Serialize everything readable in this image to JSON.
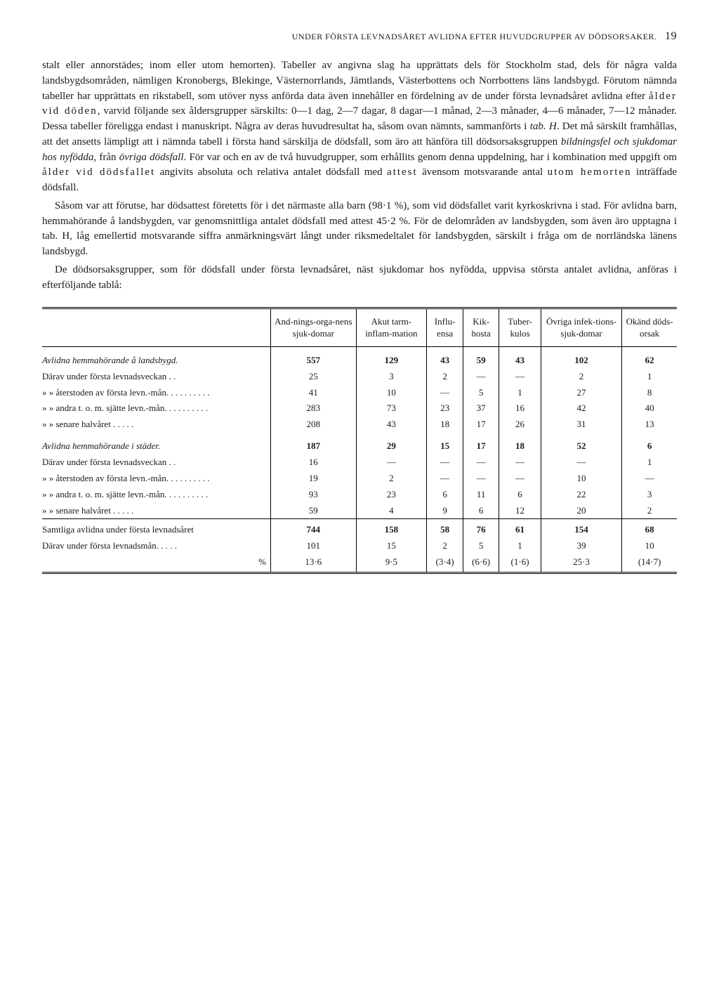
{
  "header": {
    "running_title": "UNDER FÖRSTA LEVNADSÅRET AVLIDNA EFTER HUVUDGRUPPER AV DÖDSORSAKER.",
    "page_number": "19"
  },
  "paragraphs": {
    "p1": "stalt eller annorstädes; inom eller utom hemorten). Tabeller av angivna slag ha upprättats dels för Stockholm stad, dels för några valda landsbygdsområden, nämligen Kronobergs, Blekinge, Västernorrlands, Jämtlands, Västerbottens och Norrbottens läns landsbygd. Förutom nämnda tabeller har upprättats en rikstabell, som utöver nyss anförda data även innehåller en fördelning av de under första levnadsåret avlidna efter ",
    "p1_spaced1": "ålder vid döden",
    "p1b": ", varvid följande sex åldersgrupper särskilts: 0—1 dag, 2—7 dagar, 8 dagar—1 månad, 2—3 månader, 4—6 månader, 7—12 månader. Dessa tabeller föreligga endast i manuskript. Några av deras huvudresultat ha, såsom ovan nämnts, sammanförts i ",
    "p1_em1": "tab. H",
    "p1c": ". Det må särskilt framhållas, att det ansetts lämpligt att i nämnda tabell i första hand särskilja de dödsfall, som äro att hänföra till dödsorsaksgruppen ",
    "p1_em2": "bildningsfel och sjukdomar hos nyfödda",
    "p1d": ", från ",
    "p1_em3": "övriga dödsfall",
    "p1e": ". För var och en av de två huvudgrupper, som erhållits genom denna uppdelning, har i kombination med uppgift om ",
    "p1_spaced2": "ålder vid dödsfallet",
    "p1f": " angivits absoluta och relativa antalet dödsfall med ",
    "p1_spaced3": "attest",
    "p1g": " ävensom motsvarande antal ",
    "p1_spaced4": "utom hemorten",
    "p1h": " inträffade dödsfall.",
    "p2a": "Såsom var att förutse, har dödsattest företetts för i det närmaste alla barn (98·1 %), som vid dödsfallet varit kyrkoskrivna i stad. För avlidna barn, hemmahörande å landsbygden, var genomsnittliga antalet dödsfall med attest 45·2 %. För de delområden av landsbygden, som även äro upptagna i tab. H, låg emellertid motsvarande siffra anmärkningsvärt långt under riksmedeltalet för landsbygden, särskilt i fråga om de norrländska länens landsbygd.",
    "p3a": "De dödsorsaksgrupper, som för dödsfall under första levnadsåret, näst sjukdomar hos nyfödda, uppvisa största antalet avlidna, anföras i efterföljande tablå:"
  },
  "table": {
    "columns": [
      "",
      "And-nings-orga-nens sjuk-domar",
      "Akut tarm-inflam-mation",
      "Influ-ensa",
      "Kik-hosta",
      "Tuber-kulos",
      "Övriga infek-tions-sjuk-domar",
      "Okänd döds-orsak"
    ],
    "sections": [
      {
        "title": "Avlidna hemmahörande å landsbygd.",
        "totals": [
          "557",
          "129",
          "43",
          "59",
          "43",
          "102",
          "62"
        ],
        "rows": [
          {
            "label": "Därav under första levnadsveckan . .",
            "vals": [
              "25",
              "3",
              "2",
              "—",
              "—",
              "2",
              "1"
            ]
          },
          {
            "label": "»     »  återstoden av första levn.-mån. . . . . . . . . .",
            "vals": [
              "41",
              "10",
              "—",
              "5",
              "1",
              "27",
              "8"
            ]
          },
          {
            "label": "»     »  andra t. o. m. sjätte levn.-mån. . . . . . . . . .",
            "vals": [
              "283",
              "73",
              "23",
              "37",
              "16",
              "42",
              "40"
            ]
          },
          {
            "label": "»     »  senare halvåret . . . . .",
            "vals": [
              "208",
              "43",
              "18",
              "17",
              "26",
              "31",
              "13"
            ]
          }
        ]
      },
      {
        "title": "Avlidna hemmahörande i städer.",
        "totals": [
          "187",
          "29",
          "15",
          "17",
          "18",
          "52",
          "6"
        ],
        "rows": [
          {
            "label": "Därav under första levnadsveckan . .",
            "vals": [
              "16",
              "—",
              "—",
              "—",
              "—",
              "—",
              "1"
            ]
          },
          {
            "label": "»     »  återstoden av första levn.-mån. . . . . . . . . .",
            "vals": [
              "19",
              "2",
              "—",
              "—",
              "—",
              "10",
              "—"
            ]
          },
          {
            "label": "»     »  andra t. o. m. sjätte levn.-mån. . . . . . . . . .",
            "vals": [
              "93",
              "23",
              "6",
              "11",
              "6",
              "22",
              "3"
            ]
          },
          {
            "label": "»     »  senare halvåret . . . . .",
            "vals": [
              "59",
              "4",
              "9",
              "6",
              "12",
              "20",
              "2"
            ]
          }
        ]
      }
    ],
    "footer": [
      {
        "label": "Samtliga avlidna under första levnadsåret",
        "vals": [
          "744",
          "158",
          "58",
          "76",
          "61",
          "154",
          "68"
        ],
        "bold": true
      },
      {
        "label": "Därav under första levnadsmån. . . . .",
        "vals": [
          "101",
          "15",
          "2",
          "5",
          "1",
          "39",
          "10"
        ]
      },
      {
        "label": "%",
        "vals": [
          "13·6",
          "9·5",
          "(3·4)",
          "(6·6)",
          "(1·6)",
          "25·3",
          "(14·7)"
        ]
      }
    ]
  }
}
